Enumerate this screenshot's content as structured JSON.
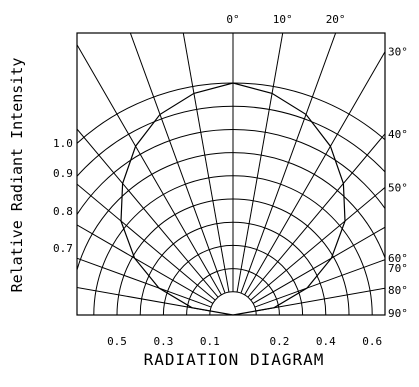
{
  "chart_data": {
    "type": "polar",
    "title": "RADIATION DIAGRAM",
    "ylabel": "Relative Radiant Intensity",
    "angle_ticks_top": [
      "0°",
      "10°",
      "20°"
    ],
    "angle_ticks_right": [
      "30°",
      "40°",
      "50°",
      "60°",
      "70°",
      "80°",
      "90°"
    ],
    "angle_tick_values_right": [
      30,
      40,
      50,
      60,
      70,
      80,
      90
    ],
    "intensity_ticks_left": [
      "1.0",
      "0.9",
      "0.8",
      "0.7"
    ],
    "intensity_tick_values_left": [
      1.0,
      0.9,
      0.8,
      0.7
    ],
    "bottom_ticks": [
      "0.5",
      "0.3",
      "0.1",
      "0.2",
      "0.4",
      "0.6"
    ],
    "bottom_tick_values": [
      -0.5,
      -0.3,
      -0.1,
      0.2,
      0.4,
      0.6
    ],
    "ring_values": [
      0.1,
      0.2,
      0.3,
      0.4,
      0.5,
      0.6,
      0.7,
      0.8,
      0.9,
      1.0
    ],
    "spoke_angles": [
      10,
      20,
      30,
      40,
      50,
      60,
      70,
      80
    ],
    "series": [
      {
        "angles": [
          0,
          10,
          20,
          30,
          40,
          50,
          60,
          70,
          80,
          90
        ],
        "values": [
          1.0,
          0.97,
          0.92,
          0.84,
          0.74,
          0.63,
          0.49,
          0.34,
          0.18,
          0.0
        ]
      }
    ]
  }
}
